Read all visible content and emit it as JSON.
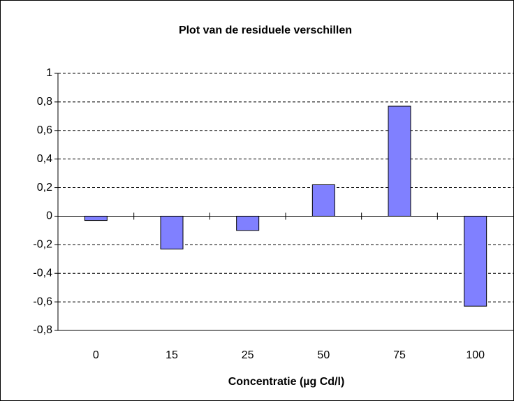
{
  "chart_data": {
    "type": "bar",
    "title": "Plot van de residuele verschillen",
    "x_label": "Concentratie (µg Cd/l)",
    "categories": [
      "0",
      "15",
      "25",
      "50",
      "75",
      "100"
    ],
    "values": [
      -0.03,
      -0.23,
      -0.1,
      0.22,
      0.77,
      -0.63
    ],
    "color": "#8080ff",
    "ylim": [
      -0.8,
      1
    ],
    "yticks": [
      {
        "value": -0.8,
        "label": "-0,8"
      },
      {
        "value": -0.6,
        "label": "-0,6"
      },
      {
        "value": -0.4,
        "label": "-0,4"
      },
      {
        "value": -0.2,
        "label": "-0,2"
      },
      0,
      {
        "value": 0.2,
        "label": "0,2"
      },
      {
        "value": 0.4,
        "label": "0,4"
      },
      {
        "value": 0.6,
        "label": "0,6"
      },
      {
        "value": 0.8,
        "label": "0,8"
      },
      1
    ],
    "grid": true
  }
}
